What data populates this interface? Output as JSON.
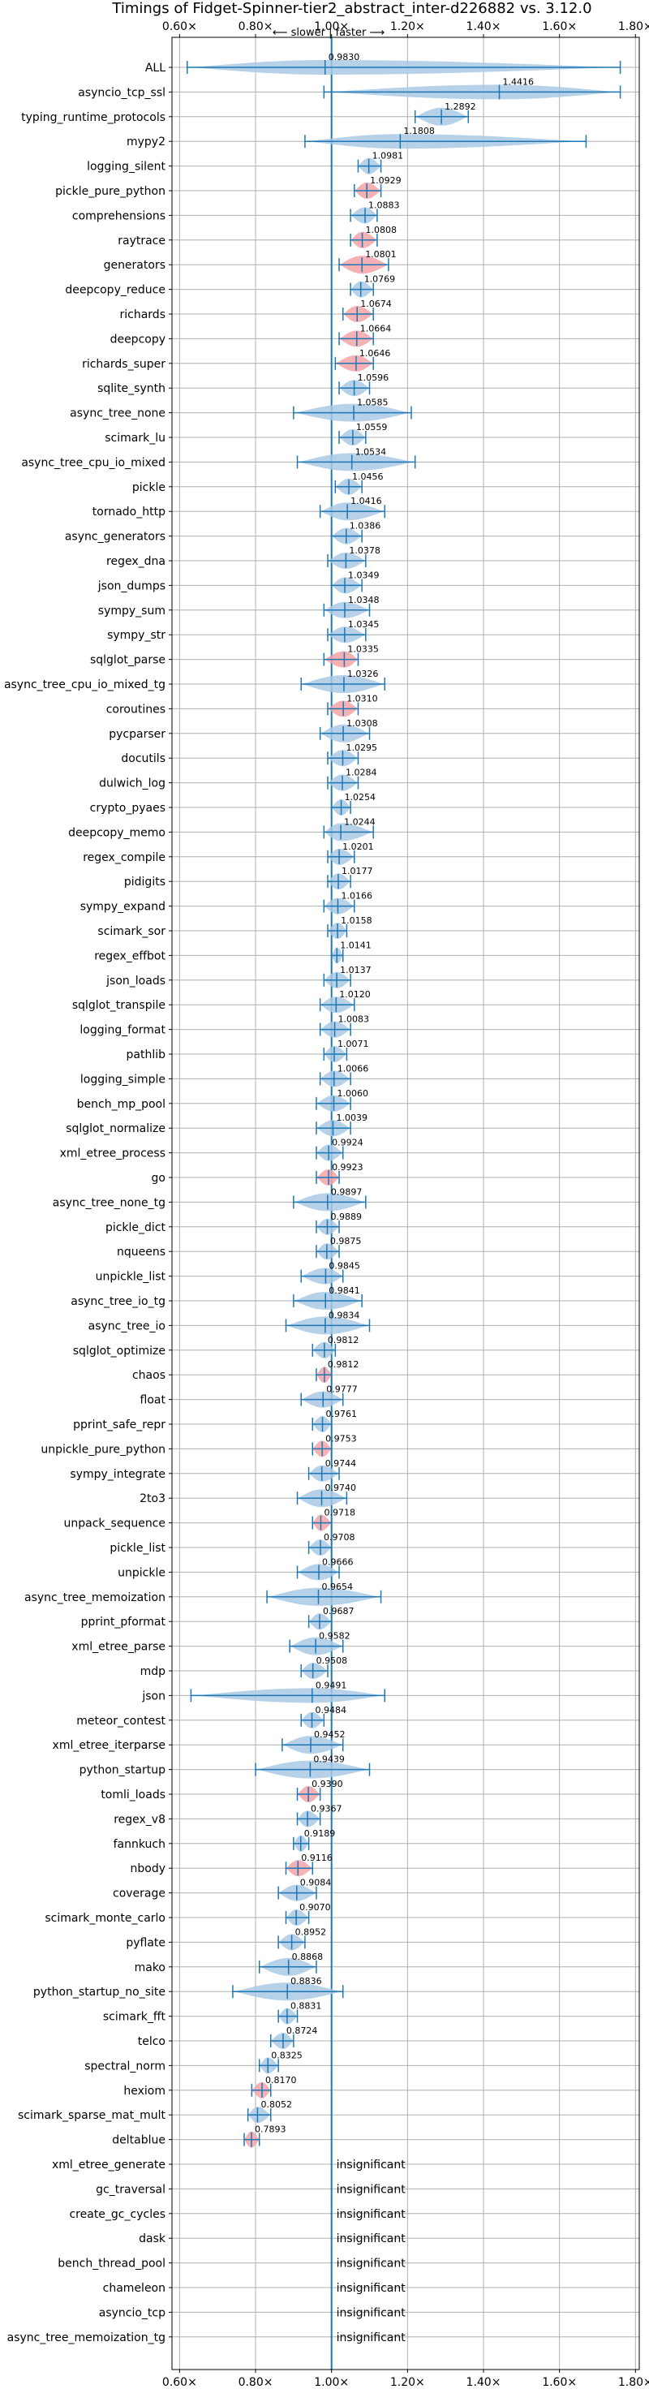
{
  "chart_data": {
    "type": "violin",
    "title": "Timings of Fidget-Spinner-tier2_abstract_inter-d226882 vs. 3.12.0",
    "direction_label": "⟵ slower | faster ⟶",
    "xlim": [
      0.58,
      1.81
    ],
    "x_ticks": [
      0.6,
      0.8,
      1.0,
      1.2,
      1.4,
      1.6,
      1.8
    ],
    "x_tick_labels": [
      "0.60×",
      "0.80×",
      "1.00×",
      "1.20×",
      "1.40×",
      "1.60×",
      "1.80×"
    ],
    "grid": true,
    "reference_x": 1.0,
    "colors": {
      "violin_fill": "#a9c9e4",
      "violin_line": "#1f77b4",
      "highlight": "#f4a3a8",
      "grid": "#b0b0b0",
      "reference_line": "#1f77b4"
    },
    "insignificant_text": "insignificant",
    "benchmarks": [
      {
        "name": "ALL",
        "mean": 0.983,
        "label": "0.9830",
        "min": 0.62,
        "max": 1.76,
        "highlight": false
      },
      {
        "name": "asyncio_tcp_ssl",
        "mean": 1.4416,
        "label": "1.4416",
        "min": 0.98,
        "max": 1.76,
        "highlight": false
      },
      {
        "name": "typing_runtime_protocols",
        "mean": 1.2892,
        "label": "1.2892",
        "min": 1.22,
        "max": 1.36,
        "highlight": false
      },
      {
        "name": "mypy2",
        "mean": 1.1808,
        "label": "1.1808",
        "min": 0.93,
        "max": 1.67,
        "highlight": false
      },
      {
        "name": "logging_silent",
        "mean": 1.0981,
        "label": "1.0981",
        "min": 1.07,
        "max": 1.13,
        "highlight": false
      },
      {
        "name": "pickle_pure_python",
        "mean": 1.0929,
        "label": "1.0929",
        "min": 1.06,
        "max": 1.13,
        "highlight": true
      },
      {
        "name": "comprehensions",
        "mean": 1.0883,
        "label": "1.0883",
        "min": 1.05,
        "max": 1.12,
        "highlight": false
      },
      {
        "name": "raytrace",
        "mean": 1.0808,
        "label": "1.0808",
        "min": 1.05,
        "max": 1.12,
        "highlight": true
      },
      {
        "name": "generators",
        "mean": 1.0801,
        "label": "1.0801",
        "min": 1.02,
        "max": 1.15,
        "highlight": true
      },
      {
        "name": "deepcopy_reduce",
        "mean": 1.0769,
        "label": "1.0769",
        "min": 1.05,
        "max": 1.11,
        "highlight": false
      },
      {
        "name": "richards",
        "mean": 1.0674,
        "label": "1.0674",
        "min": 1.03,
        "max": 1.11,
        "highlight": true
      },
      {
        "name": "deepcopy",
        "mean": 1.0664,
        "label": "1.0664",
        "min": 1.02,
        "max": 1.11,
        "highlight": true
      },
      {
        "name": "richards_super",
        "mean": 1.0646,
        "label": "1.0646",
        "min": 1.01,
        "max": 1.11,
        "highlight": true
      },
      {
        "name": "sqlite_synth",
        "mean": 1.0596,
        "label": "1.0596",
        "min": 1.02,
        "max": 1.1,
        "highlight": false
      },
      {
        "name": "async_tree_none",
        "mean": 1.0585,
        "label": "1.0585",
        "min": 0.9,
        "max": 1.21,
        "highlight": false
      },
      {
        "name": "scimark_lu",
        "mean": 1.0559,
        "label": "1.0559",
        "min": 1.02,
        "max": 1.09,
        "highlight": false
      },
      {
        "name": "async_tree_cpu_io_mixed",
        "mean": 1.0534,
        "label": "1.0534",
        "min": 0.91,
        "max": 1.22,
        "highlight": false
      },
      {
        "name": "pickle",
        "mean": 1.0456,
        "label": "1.0456",
        "min": 1.01,
        "max": 1.08,
        "highlight": false
      },
      {
        "name": "tornado_http",
        "mean": 1.0416,
        "label": "1.0416",
        "min": 0.97,
        "max": 1.14,
        "highlight": false
      },
      {
        "name": "async_generators",
        "mean": 1.0386,
        "label": "1.0386",
        "min": 1.0,
        "max": 1.08,
        "highlight": false
      },
      {
        "name": "regex_dna",
        "mean": 1.0378,
        "label": "1.0378",
        "min": 0.99,
        "max": 1.09,
        "highlight": false
      },
      {
        "name": "json_dumps",
        "mean": 1.0349,
        "label": "1.0349",
        "min": 1.0,
        "max": 1.08,
        "highlight": false
      },
      {
        "name": "sympy_sum",
        "mean": 1.0348,
        "label": "1.0348",
        "min": 0.98,
        "max": 1.1,
        "highlight": false
      },
      {
        "name": "sympy_str",
        "mean": 1.0345,
        "label": "1.0345",
        "min": 0.99,
        "max": 1.09,
        "highlight": false
      },
      {
        "name": "sqlglot_parse",
        "mean": 1.0335,
        "label": "1.0335",
        "min": 0.98,
        "max": 1.07,
        "highlight": true
      },
      {
        "name": "async_tree_cpu_io_mixed_tg",
        "mean": 1.0326,
        "label": "1.0326",
        "min": 0.92,
        "max": 1.14,
        "highlight": false
      },
      {
        "name": "coroutines",
        "mean": 1.031,
        "label": "1.0310",
        "min": 0.99,
        "max": 1.07,
        "highlight": true
      },
      {
        "name": "pycparser",
        "mean": 1.0308,
        "label": "1.0308",
        "min": 0.97,
        "max": 1.1,
        "highlight": false
      },
      {
        "name": "docutils",
        "mean": 1.0295,
        "label": "1.0295",
        "min": 0.99,
        "max": 1.07,
        "highlight": false
      },
      {
        "name": "dulwich_log",
        "mean": 1.0284,
        "label": "1.0284",
        "min": 0.99,
        "max": 1.07,
        "highlight": false
      },
      {
        "name": "crypto_pyaes",
        "mean": 1.0254,
        "label": "1.0254",
        "min": 1.0,
        "max": 1.05,
        "highlight": false
      },
      {
        "name": "deepcopy_memo",
        "mean": 1.0244,
        "label": "1.0244",
        "min": 0.98,
        "max": 1.11,
        "highlight": false
      },
      {
        "name": "regex_compile",
        "mean": 1.0201,
        "label": "1.0201",
        "min": 0.99,
        "max": 1.06,
        "highlight": false
      },
      {
        "name": "pidigits",
        "mean": 1.0177,
        "label": "1.0177",
        "min": 0.99,
        "max": 1.05,
        "highlight": false
      },
      {
        "name": "sympy_expand",
        "mean": 1.0166,
        "label": "1.0166",
        "min": 0.98,
        "max": 1.06,
        "highlight": false
      },
      {
        "name": "scimark_sor",
        "mean": 1.0158,
        "label": "1.0158",
        "min": 0.99,
        "max": 1.04,
        "highlight": false
      },
      {
        "name": "regex_effbot",
        "mean": 1.0141,
        "label": "1.0141",
        "min": 1.0,
        "max": 1.03,
        "highlight": false
      },
      {
        "name": "json_loads",
        "mean": 1.0137,
        "label": "1.0137",
        "min": 0.98,
        "max": 1.05,
        "highlight": false
      },
      {
        "name": "sqlglot_transpile",
        "mean": 1.012,
        "label": "1.0120",
        "min": 0.97,
        "max": 1.06,
        "highlight": false
      },
      {
        "name": "logging_format",
        "mean": 1.0083,
        "label": "1.0083",
        "min": 0.97,
        "max": 1.05,
        "highlight": false
      },
      {
        "name": "pathlib",
        "mean": 1.0071,
        "label": "1.0071",
        "min": 0.98,
        "max": 1.04,
        "highlight": false
      },
      {
        "name": "logging_simple",
        "mean": 1.0066,
        "label": "1.0066",
        "min": 0.97,
        "max": 1.05,
        "highlight": false
      },
      {
        "name": "bench_mp_pool",
        "mean": 1.006,
        "label": "1.0060",
        "min": 0.96,
        "max": 1.05,
        "highlight": false
      },
      {
        "name": "sqlglot_normalize",
        "mean": 1.0039,
        "label": "1.0039",
        "min": 0.96,
        "max": 1.05,
        "highlight": false
      },
      {
        "name": "xml_etree_process",
        "mean": 0.9924,
        "label": "0.9924",
        "min": 0.96,
        "max": 1.03,
        "highlight": false
      },
      {
        "name": "go",
        "mean": 0.9923,
        "label": "0.9923",
        "min": 0.96,
        "max": 1.02,
        "highlight": true
      },
      {
        "name": "async_tree_none_tg",
        "mean": 0.9897,
        "label": "0.9897",
        "min": 0.9,
        "max": 1.09,
        "highlight": false
      },
      {
        "name": "pickle_dict",
        "mean": 0.9889,
        "label": "0.9889",
        "min": 0.96,
        "max": 1.02,
        "highlight": false
      },
      {
        "name": "nqueens",
        "mean": 0.9875,
        "label": "0.9875",
        "min": 0.96,
        "max": 1.02,
        "highlight": false
      },
      {
        "name": "unpickle_list",
        "mean": 0.9845,
        "label": "0.9845",
        "min": 0.92,
        "max": 1.03,
        "highlight": false
      },
      {
        "name": "async_tree_io_tg",
        "mean": 0.9841,
        "label": "0.9841",
        "min": 0.9,
        "max": 1.08,
        "highlight": false
      },
      {
        "name": "async_tree_io",
        "mean": 0.9834,
        "label": "0.9834",
        "min": 0.88,
        "max": 1.1,
        "highlight": false
      },
      {
        "name": "sqlglot_optimize",
        "mean": 0.9812,
        "label": "0.9812",
        "min": 0.95,
        "max": 1.01,
        "highlight": false
      },
      {
        "name": "chaos",
        "mean": 0.9812,
        "label": "0.9812",
        "min": 0.96,
        "max": 1.0,
        "highlight": true
      },
      {
        "name": "float",
        "mean": 0.9777,
        "label": "0.9777",
        "min": 0.92,
        "max": 1.03,
        "highlight": false
      },
      {
        "name": "pprint_safe_repr",
        "mean": 0.9761,
        "label": "0.9761",
        "min": 0.95,
        "max": 1.0,
        "highlight": false
      },
      {
        "name": "unpickle_pure_python",
        "mean": 0.9753,
        "label": "0.9753",
        "min": 0.95,
        "max": 1.0,
        "highlight": true
      },
      {
        "name": "sympy_integrate",
        "mean": 0.9744,
        "label": "0.9744",
        "min": 0.94,
        "max": 1.02,
        "highlight": false
      },
      {
        "name": "2to3",
        "mean": 0.974,
        "label": "0.9740",
        "min": 0.91,
        "max": 1.04,
        "highlight": false
      },
      {
        "name": "unpack_sequence",
        "mean": 0.9718,
        "label": "0.9718",
        "min": 0.95,
        "max": 1.0,
        "highlight": true
      },
      {
        "name": "pickle_list",
        "mean": 0.9708,
        "label": "0.9708",
        "min": 0.94,
        "max": 1.0,
        "highlight": false
      },
      {
        "name": "unpickle",
        "mean": 0.9666,
        "label": "0.9666",
        "min": 0.91,
        "max": 1.02,
        "highlight": false
      },
      {
        "name": "async_tree_memoization",
        "mean": 0.9654,
        "label": "0.9654",
        "min": 0.83,
        "max": 1.13,
        "highlight": false
      },
      {
        "name": "pprint_pformat",
        "mean": 0.9687,
        "label": "0.9687",
        "min": 0.94,
        "max": 1.0,
        "highlight": false
      },
      {
        "name": "xml_etree_parse",
        "mean": 0.9582,
        "label": "0.9582",
        "min": 0.89,
        "max": 1.03,
        "highlight": false
      },
      {
        "name": "mdp",
        "mean": 0.9508,
        "label": "0.9508",
        "min": 0.92,
        "max": 0.99,
        "highlight": false
      },
      {
        "name": "json",
        "mean": 0.9491,
        "label": "0.9491",
        "min": 0.63,
        "max": 1.14,
        "highlight": false
      },
      {
        "name": "meteor_contest",
        "mean": 0.9484,
        "label": "0.9484",
        "min": 0.92,
        "max": 0.98,
        "highlight": false
      },
      {
        "name": "xml_etree_iterparse",
        "mean": 0.9452,
        "label": "0.9452",
        "min": 0.87,
        "max": 1.03,
        "highlight": false
      },
      {
        "name": "python_startup",
        "mean": 0.9439,
        "label": "0.9439",
        "min": 0.8,
        "max": 1.1,
        "highlight": false
      },
      {
        "name": "tomli_loads",
        "mean": 0.939,
        "label": "0.9390",
        "min": 0.91,
        "max": 0.97,
        "highlight": true
      },
      {
        "name": "regex_v8",
        "mean": 0.9367,
        "label": "0.9367",
        "min": 0.91,
        "max": 0.97,
        "highlight": false
      },
      {
        "name": "fannkuch",
        "mean": 0.9189,
        "label": "0.9189",
        "min": 0.9,
        "max": 0.94,
        "highlight": false
      },
      {
        "name": "nbody",
        "mean": 0.9116,
        "label": "0.9116",
        "min": 0.88,
        "max": 0.95,
        "highlight": true
      },
      {
        "name": "coverage",
        "mean": 0.9084,
        "label": "0.9084",
        "min": 0.86,
        "max": 0.96,
        "highlight": false
      },
      {
        "name": "scimark_monte_carlo",
        "mean": 0.907,
        "label": "0.9070",
        "min": 0.88,
        "max": 0.94,
        "highlight": false
      },
      {
        "name": "pyflate",
        "mean": 0.8952,
        "label": "0.8952",
        "min": 0.86,
        "max": 0.93,
        "highlight": false
      },
      {
        "name": "mako",
        "mean": 0.8868,
        "label": "0.8868",
        "min": 0.81,
        "max": 0.96,
        "highlight": false
      },
      {
        "name": "python_startup_no_site",
        "mean": 0.8836,
        "label": "0.8836",
        "min": 0.74,
        "max": 1.03,
        "highlight": false
      },
      {
        "name": "scimark_fft",
        "mean": 0.8831,
        "label": "0.8831",
        "min": 0.86,
        "max": 0.91,
        "highlight": false
      },
      {
        "name": "telco",
        "mean": 0.8724,
        "label": "0.8724",
        "min": 0.84,
        "max": 0.9,
        "highlight": false
      },
      {
        "name": "spectral_norm",
        "mean": 0.8325,
        "label": "0.8325",
        "min": 0.81,
        "max": 0.86,
        "highlight": false
      },
      {
        "name": "hexiom",
        "mean": 0.817,
        "label": "0.8170",
        "min": 0.79,
        "max": 0.84,
        "highlight": true
      },
      {
        "name": "scimark_sparse_mat_mult",
        "mean": 0.8052,
        "label": "0.8052",
        "min": 0.78,
        "max": 0.84,
        "highlight": false
      },
      {
        "name": "deltablue",
        "mean": 0.7893,
        "label": "0.7893",
        "min": 0.77,
        "max": 0.81,
        "highlight": true
      },
      {
        "name": "xml_etree_generate",
        "insignificant": true
      },
      {
        "name": "gc_traversal",
        "insignificant": true
      },
      {
        "name": "create_gc_cycles",
        "insignificant": true
      },
      {
        "name": "dask",
        "insignificant": true
      },
      {
        "name": "bench_thread_pool",
        "insignificant": true
      },
      {
        "name": "chameleon",
        "insignificant": true
      },
      {
        "name": "asyncio_tcp",
        "insignificant": true
      },
      {
        "name": "async_tree_memoization_tg",
        "insignificant": true
      }
    ]
  }
}
